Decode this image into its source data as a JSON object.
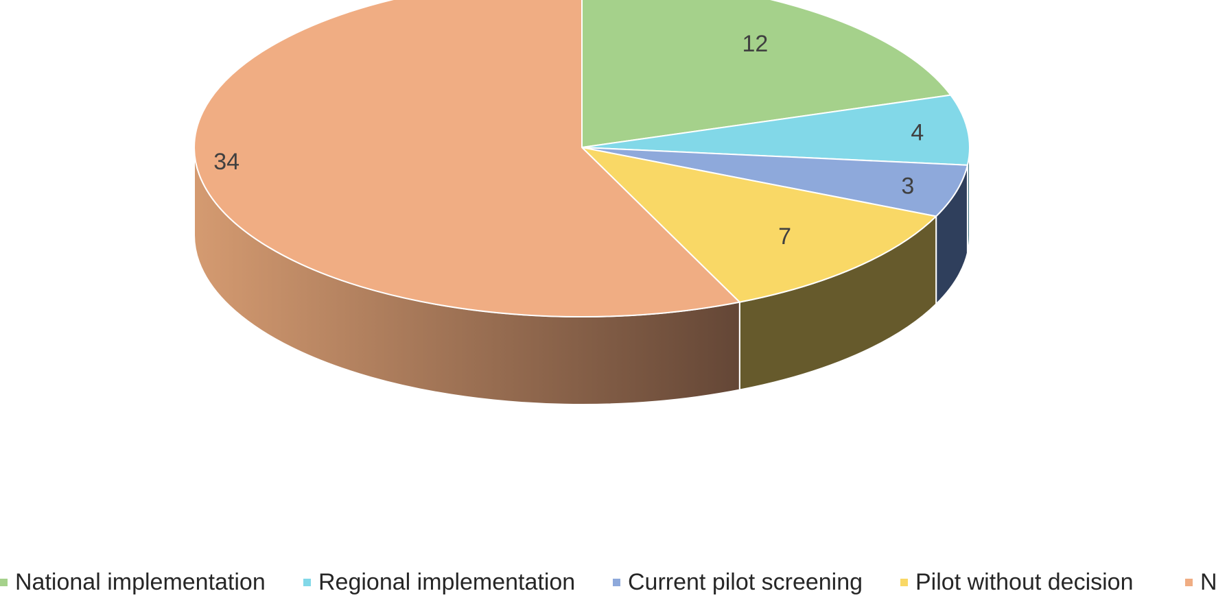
{
  "chart_data": {
    "type": "pie",
    "style": "3d",
    "title": "",
    "categories": [
      "National implementation",
      "Regional implementation",
      "Current pilot screening",
      "Pilot without decision",
      "No"
    ],
    "values": [
      12,
      4,
      3,
      7,
      34
    ],
    "data_labels": [
      "12",
      "4",
      "3",
      "7",
      "34"
    ],
    "colors": [
      "#a5d18b",
      "#82d8e8",
      "#8ea9db",
      "#f9d866",
      "#f0ad83"
    ],
    "side_colors": [
      "#5f7a4e",
      "#3f7380",
      "#2f3f5c",
      "#665a2c",
      "#c88f67"
    ],
    "legend_position": "bottom"
  }
}
